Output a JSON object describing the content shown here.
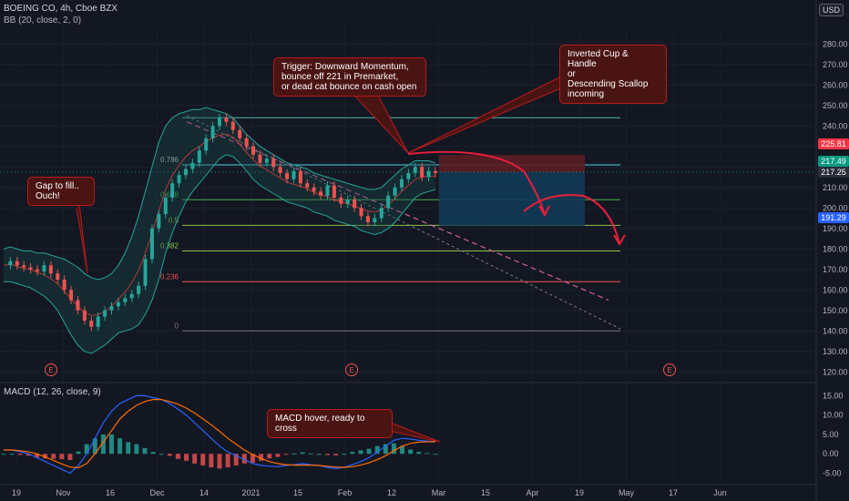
{
  "header": {
    "title": "BOEING CO, 4h, Cboe BZX",
    "indicator": "BB (20, close, 2, 0)",
    "currency": "USD",
    "macd_label": "MACD (12, 26, close, 9)"
  },
  "annotations": {
    "trigger": "Trigger: Downward Momentum,\nbounce off 221 in Premarket,\nor dead cat bounce on cash open",
    "pattern": "Inverted Cup & Handle\nor\nDescending Scallop\nincoming",
    "gap": "Gap to fill..\nOuch!",
    "macd": "MACD hover, ready to cross"
  },
  "price_tags": [
    {
      "value": "225.81",
      "color": "#f23645"
    },
    {
      "value": "217.49",
      "color": "#089981"
    },
    {
      "value": "217.25",
      "color": "#2a2e39"
    },
    {
      "value": "191.29",
      "color": "#2962ff"
    }
  ],
  "chart_data": {
    "type": "line",
    "title": "BOEING CO, 4h, Cboe BZX",
    "price_axis": {
      "ticks": [
        "280.00",
        "270.00",
        "260.00",
        "250.00",
        "240.00",
        "230.00",
        "220.00",
        "210.00",
        "200.00",
        "190.00",
        "180.00",
        "170.00",
        "160.00",
        "150.00",
        "140.00",
        "130.00",
        "120.00"
      ],
      "range": [
        117,
        289
      ]
    },
    "macd_axis": {
      "ticks": [
        "15.00",
        "10.00",
        "5.00",
        "0.00",
        "-5.00"
      ],
      "range": [
        -7,
        16.5
      ]
    },
    "time_ticks": [
      "19",
      "Nov",
      "16",
      "Dec",
      "14",
      "2021",
      "15",
      "Feb",
      "12",
      "Mar",
      "15",
      "Apr",
      "19",
      "May",
      "17",
      "Jun"
    ],
    "fibonacci": [
      {
        "level": "0.786",
        "price": 221
      },
      {
        "level": "0.618",
        "price": 204
      },
      {
        "level": "0.5",
        "price": 191.5
      },
      {
        "level": "0.382",
        "price": 179
      },
      {
        "level": "0.236",
        "price": 164
      },
      {
        "level": "0",
        "price": 140
      }
    ],
    "fib_top": 244,
    "earnings_markers": [
      "E",
      "E",
      "E"
    ],
    "price_series": {
      "name": "",
      "values": [
        172,
        174,
        172,
        171,
        170,
        169,
        172,
        168,
        165,
        160,
        155,
        150,
        145,
        142,
        147,
        150,
        152,
        154,
        156,
        158,
        162,
        175,
        190,
        197,
        205,
        212,
        216,
        219,
        222,
        228,
        234,
        240,
        244,
        242,
        238,
        234,
        230,
        226,
        222,
        224,
        220,
        217,
        214,
        218,
        212,
        210,
        208,
        206,
        211,
        205,
        202,
        204,
        200,
        196,
        193,
        195,
        200,
        206,
        210,
        214,
        217,
        220,
        215,
        218,
        217
      ],
      "bb_upper": [
        180,
        181,
        180,
        179,
        179,
        178,
        178,
        177,
        176,
        175,
        173,
        171,
        168,
        166,
        165,
        166,
        168,
        172,
        178,
        186,
        196,
        208,
        220,
        232,
        240,
        244,
        246,
        247,
        248,
        248,
        249,
        248,
        247,
        246,
        244,
        240,
        236,
        233,
        230,
        228,
        226,
        224,
        222,
        221,
        220,
        219,
        217,
        216,
        215,
        214,
        213,
        212,
        211,
        210,
        209,
        209,
        210,
        213,
        216,
        219,
        221,
        223,
        223,
        223,
        222
      ],
      "bb_lower": [
        164,
        164,
        163,
        162,
        161,
        159,
        157,
        154,
        150,
        144,
        138,
        133,
        130,
        129,
        131,
        133,
        136,
        139,
        140,
        141,
        143,
        148,
        155,
        165,
        178,
        188,
        196,
        203,
        208,
        212,
        216,
        220,
        224,
        226,
        225,
        222,
        218,
        214,
        211,
        209,
        207,
        205,
        203,
        202,
        201,
        200,
        198,
        197,
        196,
        194,
        193,
        192,
        191,
        189,
        188,
        187,
        188,
        190,
        193,
        197,
        201,
        205,
        207,
        208,
        209
      ]
    },
    "macd_series": {
      "macd": [
        1,
        1,
        0.5,
        0,
        -1,
        -2,
        -3,
        -4,
        -5,
        -3,
        0,
        4,
        8,
        11,
        13,
        14,
        15,
        15,
        14.5,
        14,
        13,
        11.5,
        10,
        8,
        6,
        4,
        2,
        0.5,
        -0.5,
        -1.5,
        -2.5,
        -3,
        -3.2,
        -3.3,
        -3,
        -2.8,
        -2.5,
        -2.8,
        -3,
        -3.5,
        -3.8,
        -3.5,
        -2.8,
        -2,
        -1,
        0.5,
        2,
        3.5,
        4,
        3.8,
        3.5,
        3.3,
        3.1
      ],
      "signal": [
        1,
        1,
        0.8,
        0.5,
        0,
        -0.8,
        -1.7,
        -2.6,
        -3.4,
        -3.6,
        -2.5,
        0,
        3,
        6,
        9,
        11,
        12.5,
        13.5,
        14,
        14,
        13.5,
        12.8,
        11.8,
        10.5,
        9,
        7.5,
        5.8,
        4,
        2.5,
        1,
        -0.2,
        -1.2,
        -2,
        -2.5,
        -2.8,
        -2.9,
        -2.9,
        -2.9,
        -3,
        -3.2,
        -3.4,
        -3.5,
        -3.3,
        -2.9,
        -2.3,
        -1.5,
        -0.5,
        0.8,
        2,
        2.7,
        3,
        3.1,
        3.1
      ]
    }
  }
}
